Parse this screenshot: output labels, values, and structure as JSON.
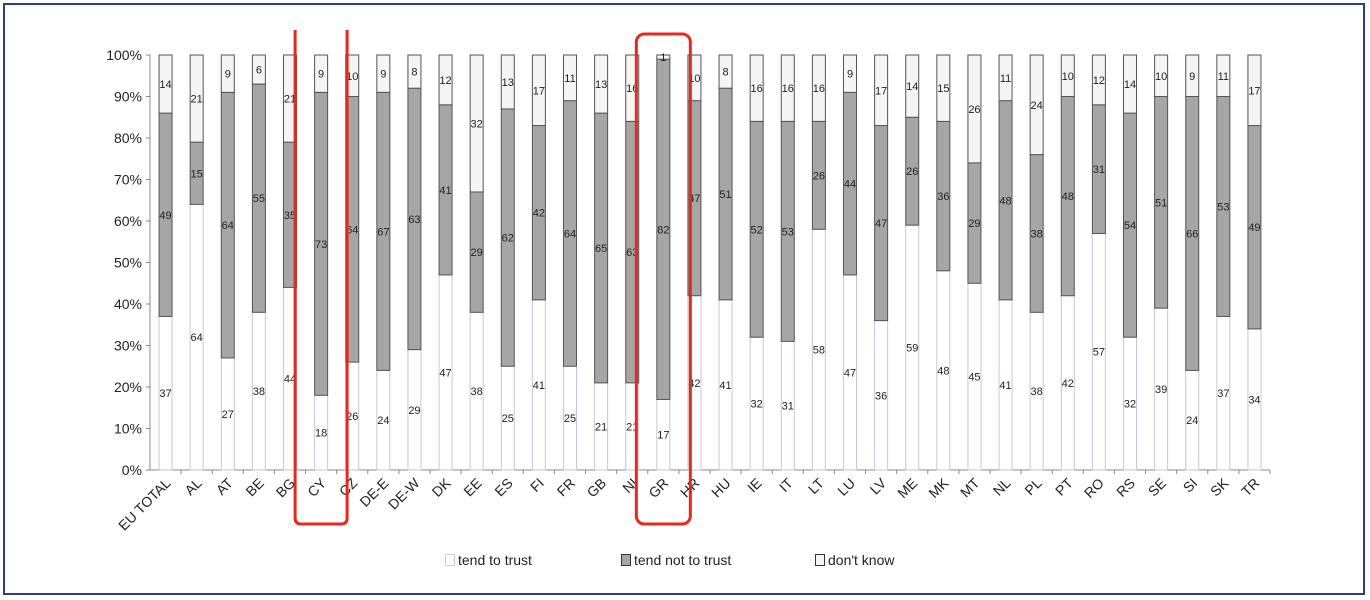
{
  "chart_data": {
    "type": "bar",
    "stacked": true,
    "normalized": true,
    "categories": [
      "EU TOTAL",
      "AL",
      "AT",
      "BE",
      "BG",
      "CY",
      "CZ",
      "DE-E",
      "DE-W",
      "DK",
      "EE",
      "ES",
      "FI",
      "FR",
      "GB",
      "NI",
      "GR",
      "HR",
      "HU",
      "IE",
      "IT",
      "LT",
      "LU",
      "LV",
      "ME",
      "MK",
      "MT",
      "NL",
      "PL",
      "PT",
      "RO",
      "RS",
      "SE",
      "SI",
      "SK",
      "TR"
    ],
    "series": [
      {
        "name": "tend to trust",
        "color": "#ffffff",
        "values": [
          37,
          64,
          27,
          38,
          44,
          18,
          26,
          24,
          29,
          47,
          38,
          25,
          41,
          25,
          21,
          21,
          17,
          42,
          41,
          32,
          31,
          58,
          47,
          36,
          59,
          48,
          45,
          41,
          38,
          42,
          57,
          32,
          39,
          24,
          37,
          34
        ]
      },
      {
        "name": "tend not to trust",
        "color": "#a6a6a6",
        "values": [
          49,
          15,
          64,
          55,
          35,
          73,
          64,
          67,
          63,
          41,
          29,
          62,
          42,
          64,
          65,
          63,
          82,
          47,
          51,
          52,
          53,
          26,
          44,
          47,
          26,
          36,
          29,
          48,
          38,
          48,
          31,
          54,
          51,
          66,
          53,
          49
        ]
      },
      {
        "name": "don't know",
        "color": "#f5f5f5",
        "values": [
          14,
          21,
          9,
          6,
          21,
          9,
          10,
          9,
          8,
          12,
          32,
          13,
          17,
          11,
          13,
          16,
          1,
          10,
          8,
          16,
          16,
          16,
          9,
          17,
          14,
          15,
          26,
          11,
          24,
          10,
          12,
          14,
          10,
          9,
          11,
          17
        ]
      }
    ],
    "labels": {
      "trust": [
        "37",
        "64",
        "27",
        "38",
        "44",
        "18",
        "26",
        "24",
        "29",
        "47",
        "38",
        "25",
        "41",
        "25",
        "21",
        "21",
        "17",
        "42",
        "41",
        "32",
        "31",
        "58",
        "47",
        "36",
        "59",
        "48",
        "45",
        "41",
        "38",
        "42",
        "57",
        "32",
        "39",
        "24",
        "37",
        "34"
      ],
      "not_trust": [
        "49",
        "15",
        "64",
        "55",
        "35",
        "73",
        "64",
        "67",
        "63",
        "41",
        "29",
        "62",
        "42",
        "64",
        "65",
        "63",
        "82",
        "47",
        "51",
        "52",
        "53",
        "26",
        "44",
        "47",
        "26",
        "36",
        "29",
        "48",
        "38",
        "48",
        "31",
        "54",
        "51",
        "66",
        "53",
        "49"
      ],
      "dont_know": [
        "14",
        "21",
        "9",
        "6",
        "21",
        "9",
        "10",
        "9",
        "8",
        "12",
        "32",
        "13",
        "17",
        "11",
        "13",
        "16",
        "1",
        "10",
        "8",
        "16",
        "16",
        "16",
        "9",
        "17",
        "14",
        "15",
        "26",
        "11",
        "24",
        "10",
        "12",
        "14",
        "10",
        "9",
        "11",
        "17"
      ]
    },
    "y_ticks": [
      "0%",
      "10%",
      "20%",
      "30%",
      "40%",
      "50%",
      "60%",
      "70%",
      "80%",
      "90%",
      "100%"
    ],
    "ylim": [
      0,
      100
    ],
    "highlighted_categories": [
      "CY",
      "GR"
    ],
    "highlight_color": "#e8281e",
    "title": "",
    "xlabel": "",
    "ylabel": "",
    "legend_position": "bottom"
  },
  "legend": {
    "trust": "tend to trust",
    "not_trust": "tend not to trust",
    "dont_know": "don't know"
  }
}
